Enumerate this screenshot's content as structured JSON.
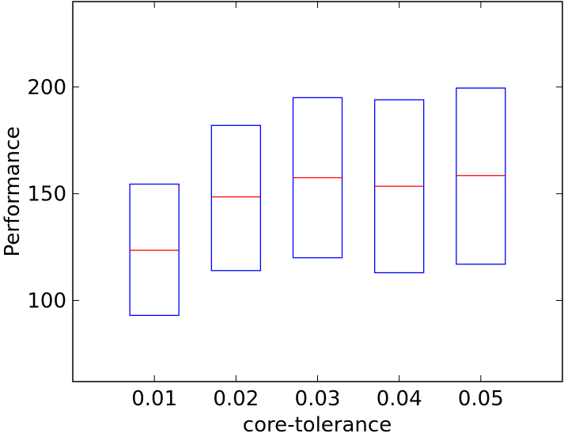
{
  "chart_data": {
    "type": "box",
    "xlabel": "core-tolerance",
    "ylabel": "Performance",
    "categories": [
      "0.01",
      "0.02",
      "0.03",
      "0.04",
      "0.05"
    ],
    "boxes": [
      {
        "q1": 93,
        "median": 123.5,
        "q3": 154.5
      },
      {
        "q1": 114,
        "median": 148.5,
        "q3": 182
      },
      {
        "q1": 120,
        "median": 157.5,
        "q3": 195
      },
      {
        "q1": 113,
        "median": 153.5,
        "q3": 194
      },
      {
        "q1": 117,
        "median": 158.5,
        "q3": 199.5
      }
    ],
    "ylim": [
      62,
      240
    ],
    "yticks": [
      100,
      150,
      200
    ],
    "grid": false,
    "legend": "none",
    "box_color": "#0000ff",
    "median_color": "#ff0000"
  }
}
